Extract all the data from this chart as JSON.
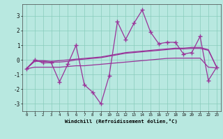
{
  "x": [
    0,
    1,
    2,
    3,
    4,
    5,
    6,
    7,
    8,
    9,
    10,
    11,
    12,
    13,
    14,
    15,
    16,
    17,
    18,
    19,
    20,
    21,
    22,
    23
  ],
  "y_main": [
    -0.6,
    0.0,
    -0.2,
    -0.2,
    -1.5,
    -0.3,
    1.0,
    -1.7,
    -2.2,
    -3.0,
    -1.1,
    2.6,
    1.4,
    2.5,
    3.4,
    1.9,
    1.1,
    1.2,
    1.2,
    0.4,
    0.5,
    1.6,
    -1.4,
    -0.5
  ],
  "y_line1": [
    -0.6,
    -0.05,
    -0.05,
    -0.1,
    -0.05,
    0.0,
    0.05,
    0.1,
    0.15,
    0.2,
    0.3,
    0.4,
    0.5,
    0.55,
    0.6,
    0.65,
    0.7,
    0.75,
    0.8,
    0.8,
    0.85,
    0.85,
    0.7,
    -0.5
  ],
  "y_line2": [
    -0.6,
    -0.1,
    -0.1,
    -0.15,
    -0.15,
    -0.1,
    0.0,
    0.05,
    0.1,
    0.15,
    0.25,
    0.35,
    0.45,
    0.5,
    0.55,
    0.6,
    0.65,
    0.7,
    0.75,
    0.75,
    0.78,
    0.78,
    0.65,
    -0.5
  ],
  "y_line3": [
    -0.6,
    -0.5,
    -0.5,
    -0.5,
    -0.5,
    -0.45,
    -0.4,
    -0.4,
    -0.35,
    -0.3,
    -0.25,
    -0.2,
    -0.15,
    -0.1,
    -0.05,
    0.0,
    0.05,
    0.1,
    0.12,
    0.12,
    0.12,
    0.12,
    -0.5,
    -0.55
  ],
  "bg_color": "#b8e8e0",
  "line_color": "#993399",
  "grid_color": "#88ccbb",
  "xlabel": "Windchill (Refroidissement éolien,°C)",
  "ylim": [
    -3.5,
    3.8
  ],
  "xlim": [
    -0.5,
    23.5
  ],
  "yticks": [
    -3,
    -2,
    -1,
    0,
    1,
    2,
    3
  ],
  "xticks": [
    0,
    1,
    2,
    3,
    4,
    5,
    6,
    7,
    8,
    9,
    10,
    11,
    12,
    13,
    14,
    15,
    16,
    17,
    18,
    19,
    20,
    21,
    22,
    23
  ]
}
